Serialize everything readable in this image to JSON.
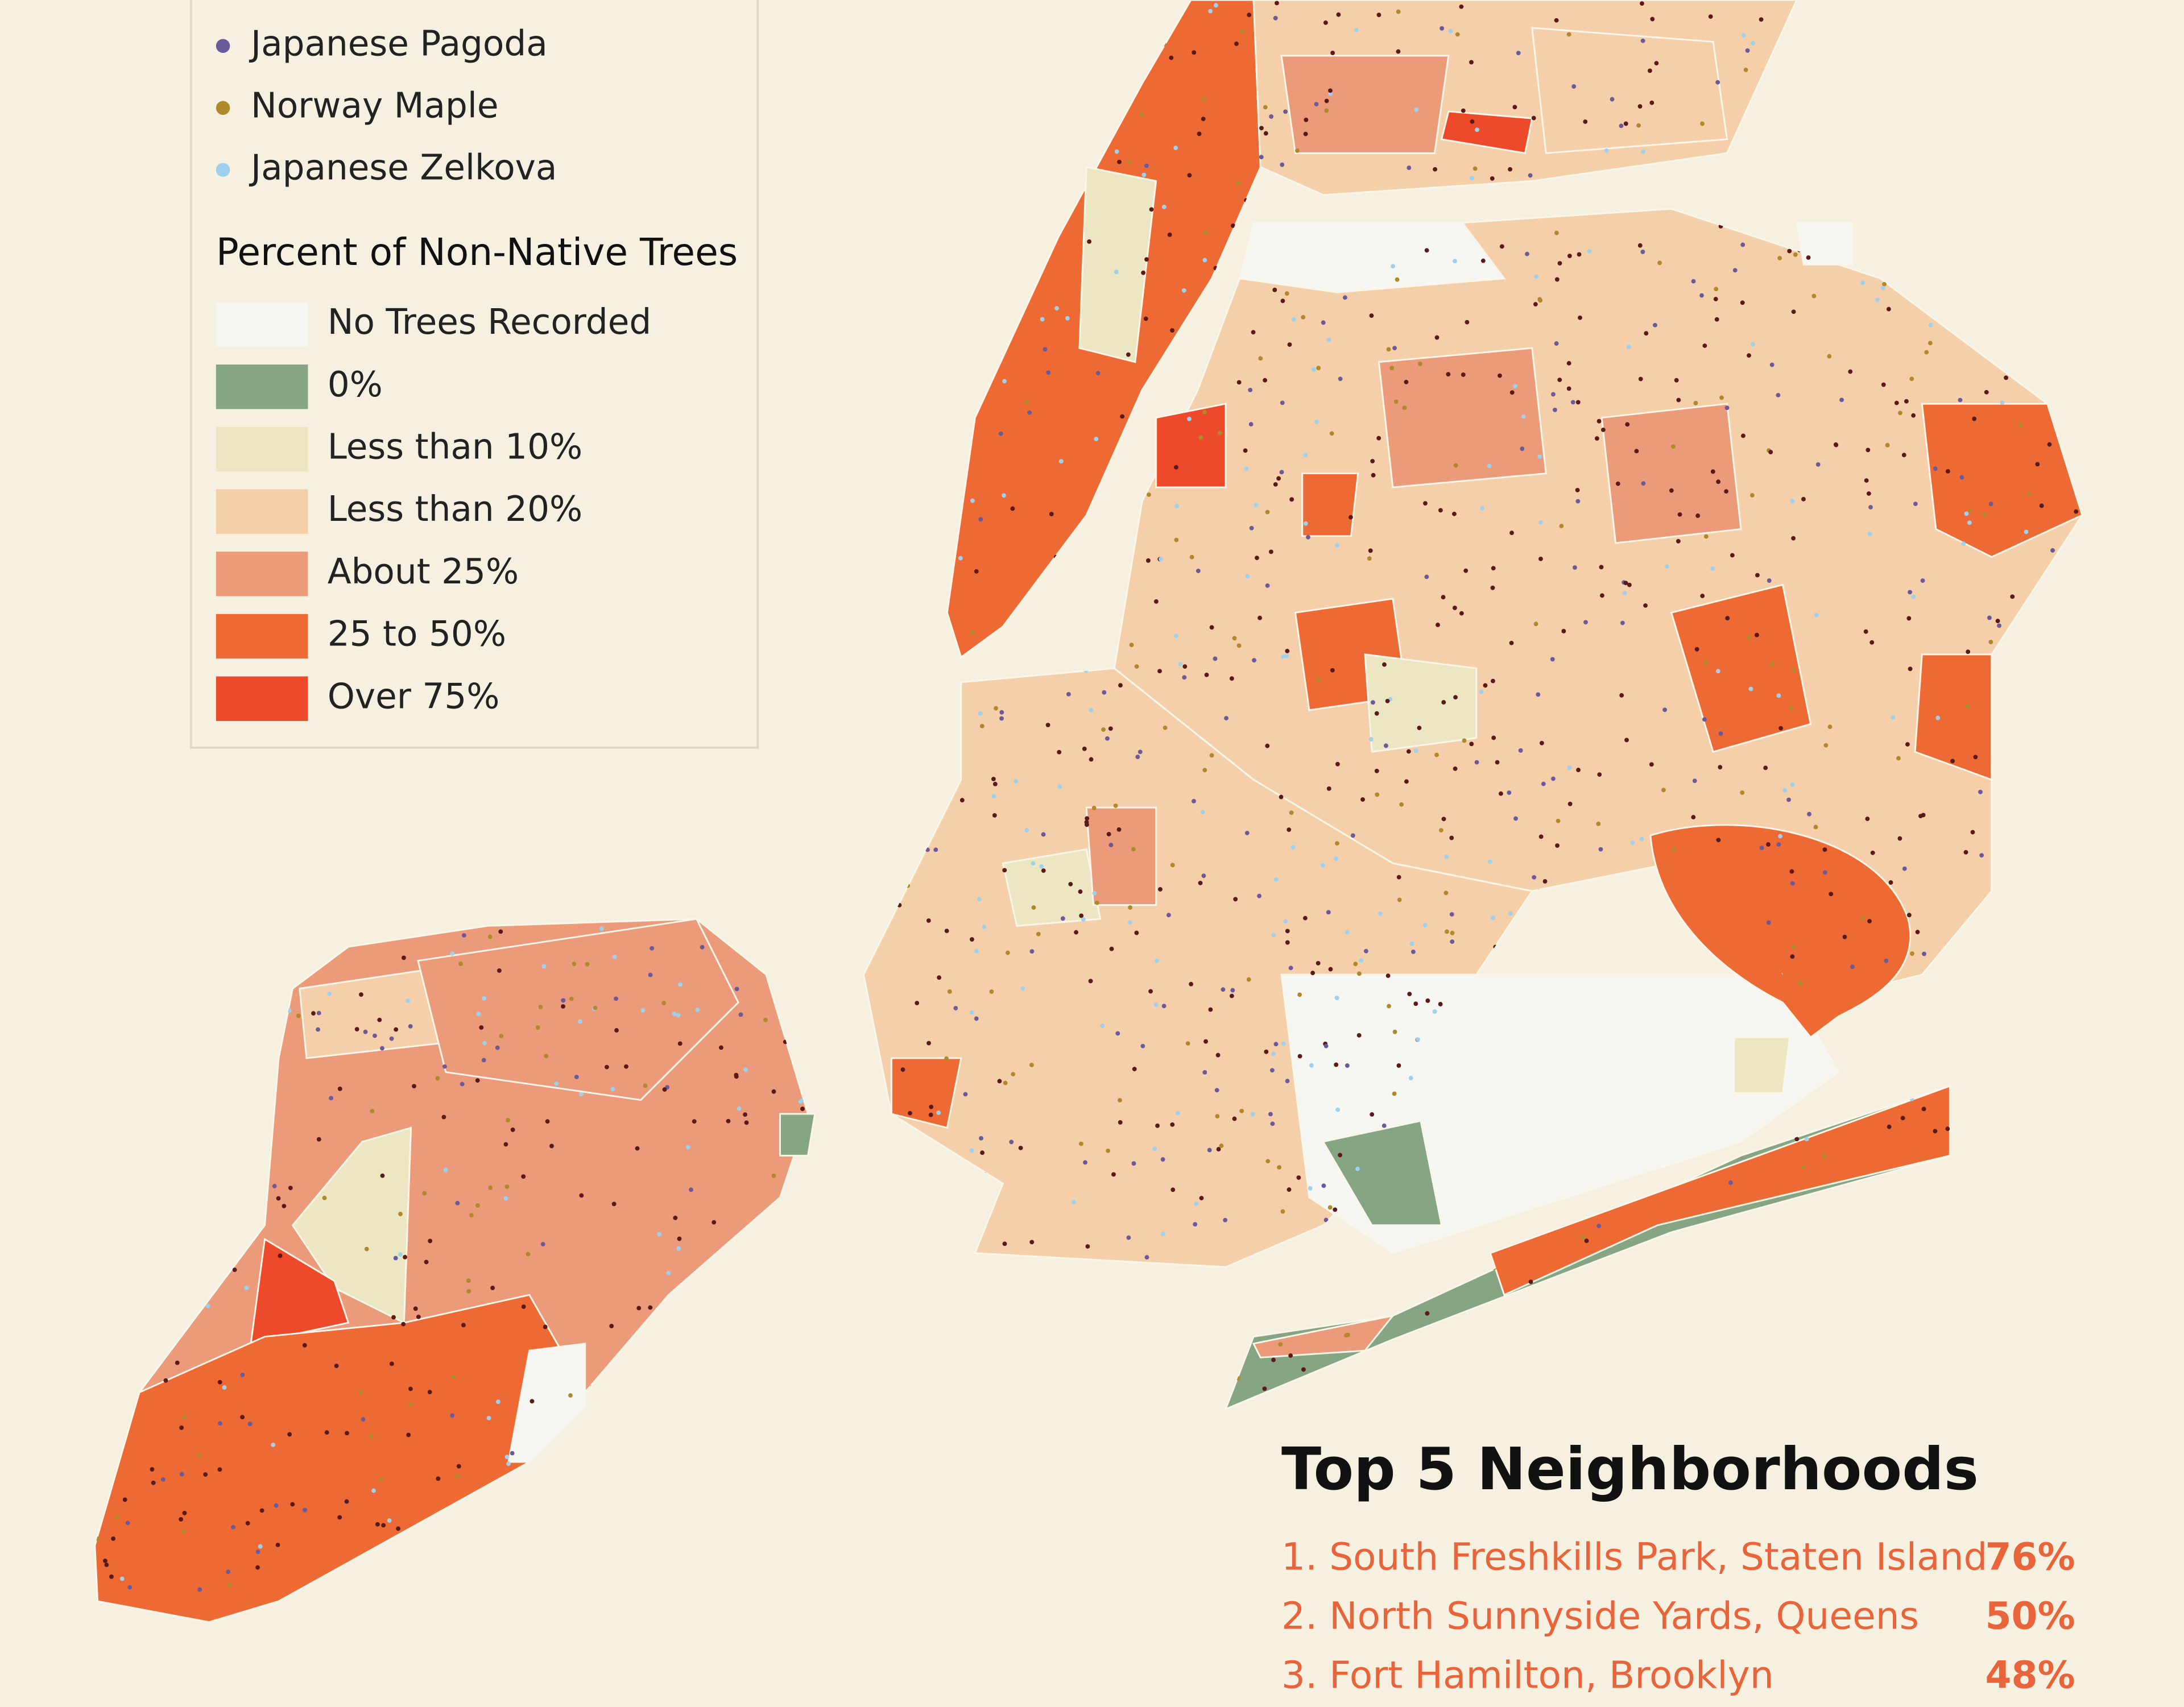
{
  "legend": {
    "species": [
      {
        "label": "Japanese Pagoda",
        "color": "#6a5a9a"
      },
      {
        "label": "Norway Maple",
        "color": "#b08a2a"
      },
      {
        "label": "Japanese Zelkova",
        "color": "#9fd0ec"
      }
    ],
    "title": "Percent of Non-Native Trees",
    "classes": [
      {
        "label": "No Trees Recorded",
        "color": "#f6f6f3"
      },
      {
        "label": "0%",
        "color": "#86a583"
      },
      {
        "label": "Less than 10%",
        "color": "#ede6c3"
      },
      {
        "label": "Less than 20%",
        "color": "#f5cfaa"
      },
      {
        "label": "About 25%",
        "color": "#eb9a7a"
      },
      {
        "label": "25 to 50%",
        "color": "#ee6a35"
      },
      {
        "label": "Over 75%",
        "color": "#ec4a2a"
      }
    ]
  },
  "top_neighborhoods": {
    "title": "Top 5 Neighborhoods",
    "items": [
      {
        "label": "1. South Freshkills Park, Staten Island",
        "value": "76%"
      },
      {
        "label": "2. North Sunnyside Yards, Queens",
        "value": "50%"
      },
      {
        "label": "3. Fort Hamilton, Brooklyn",
        "value": "48%"
      }
    ]
  }
}
